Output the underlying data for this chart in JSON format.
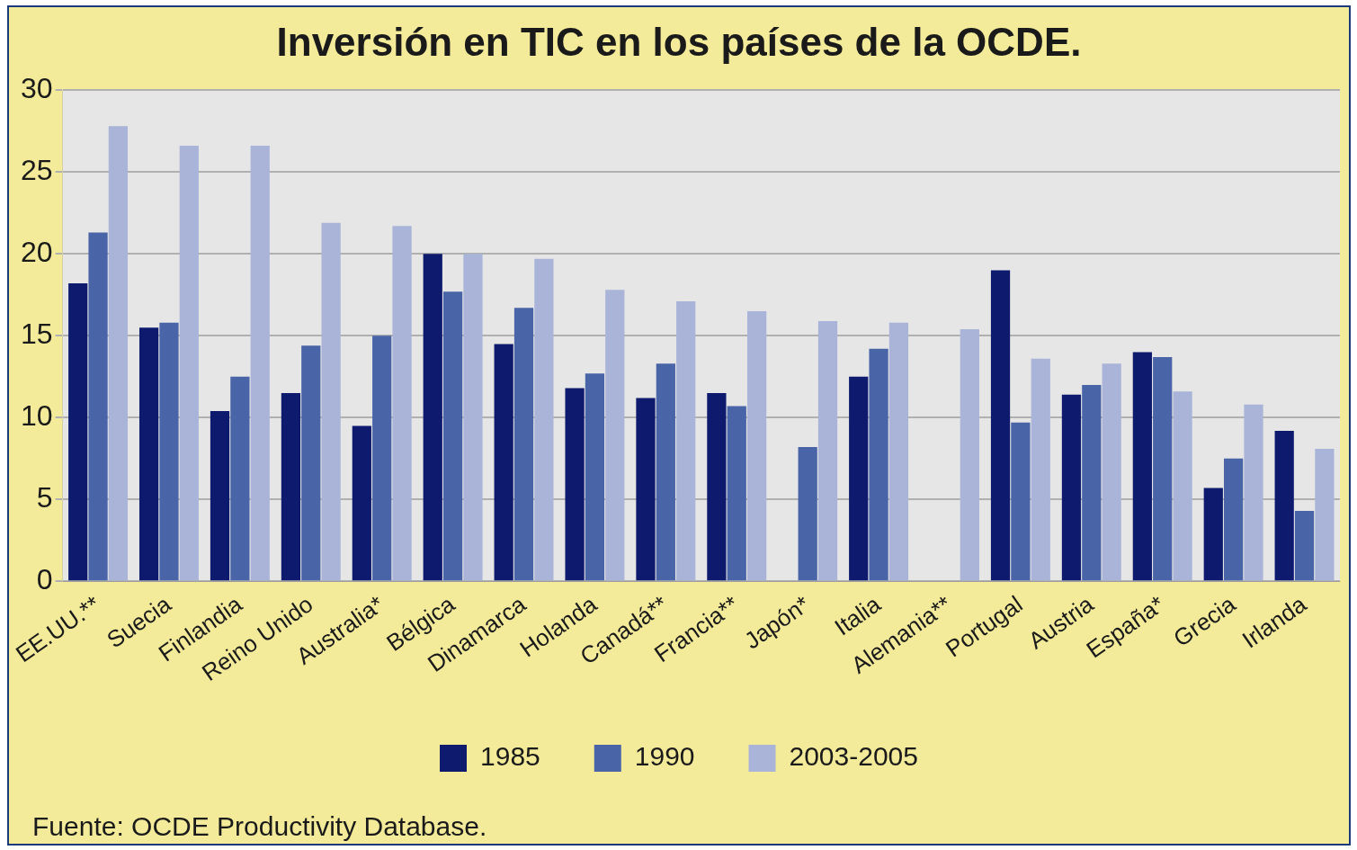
{
  "chart_data": {
    "type": "bar",
    "title": "Inversión en TIC en los países de la OCDE.",
    "categories": [
      "EE.UU.**",
      "Suecia",
      "Finlandia",
      "Reino Unido",
      "Australia*",
      "Bélgica",
      "Dinamarca",
      "Holanda",
      "Canadá**",
      "Francia**",
      "Japón*",
      "Italia",
      "Alemania**",
      "Portugal",
      "Austria",
      "España*",
      "Grecia",
      "Irlanda"
    ],
    "series": [
      {
        "name": "1985",
        "color": "#0d1a6e",
        "values": [
          18.2,
          15.5,
          10.4,
          11.5,
          9.5,
          20.0,
          14.5,
          11.8,
          11.2,
          11.5,
          null,
          12.5,
          null,
          19.0,
          11.4,
          14.0,
          5.7,
          9.2
        ]
      },
      {
        "name": "1990",
        "color": "#4a64a8",
        "values": [
          21.3,
          15.8,
          12.5,
          14.4,
          15.0,
          17.7,
          16.7,
          12.7,
          13.3,
          10.7,
          8.2,
          14.2,
          null,
          9.7,
          12.0,
          13.7,
          7.5,
          4.3
        ]
      },
      {
        "name": "2003-2005",
        "color": "#a9b4d8",
        "values": [
          27.8,
          26.6,
          26.6,
          21.9,
          21.7,
          20.0,
          19.7,
          17.8,
          17.1,
          16.5,
          15.9,
          15.8,
          15.4,
          13.6,
          13.3,
          11.6,
          10.8,
          8.1
        ]
      }
    ],
    "ylim": [
      0,
      30
    ],
    "yticks": [
      0,
      5,
      10,
      15,
      20,
      25,
      30
    ],
    "grid": "y",
    "legend": "bottom",
    "annotations": [
      "Fuente: OCDE Productivity Database."
    ]
  }
}
